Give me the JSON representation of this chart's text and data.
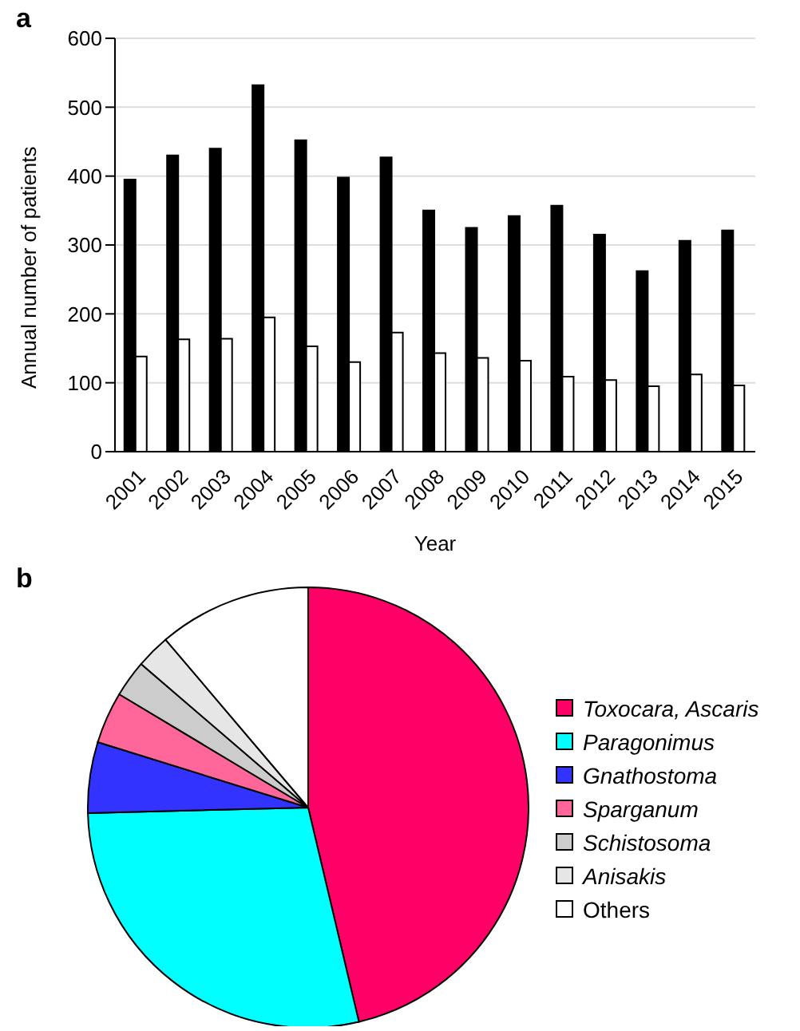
{
  "chart_data": [
    {
      "type": "bar",
      "title": "a",
      "xlabel": "Year",
      "ylabel": "Annual number of patients",
      "categories": [
        "2001",
        "2002",
        "2003",
        "2004",
        "2005",
        "2006",
        "2007",
        "2008",
        "2009",
        "2010",
        "2011",
        "2012",
        "2013",
        "2014",
        "2015"
      ],
      "series": [
        {
          "color": "#000000",
          "values": [
            395,
            430,
            440,
            532,
            452,
            398,
            427,
            350,
            325,
            342,
            357,
            315,
            262,
            306,
            321
          ]
        },
        {
          "color": "#ffffff",
          "values": [
            138,
            163,
            164,
            195,
            153,
            130,
            173,
            143,
            136,
            132,
            109,
            104,
            95,
            112,
            96
          ]
        }
      ],
      "ylim": [
        0,
        600
      ],
      "yticks": [
        0,
        100,
        200,
        300,
        400,
        500,
        600
      ],
      "grid": "y",
      "legend": false
    },
    {
      "type": "pie",
      "title": "b",
      "categories": [
        "Toxocara, Ascaris",
        "Paragonimus",
        "Gnathostoma",
        "Sparganum",
        "Schistosoma",
        "Anisakis",
        "Others"
      ],
      "values": [
        46.3,
        28.3,
        5.2,
        3.8,
        2.7,
        2.5,
        11.2
      ],
      "colors": [
        "#ff0066",
        "#00ffff",
        "#3333ff",
        "#ff6699",
        "#cccccc",
        "#e6e6e6",
        "#ffffff"
      ],
      "legend": "right"
    }
  ]
}
